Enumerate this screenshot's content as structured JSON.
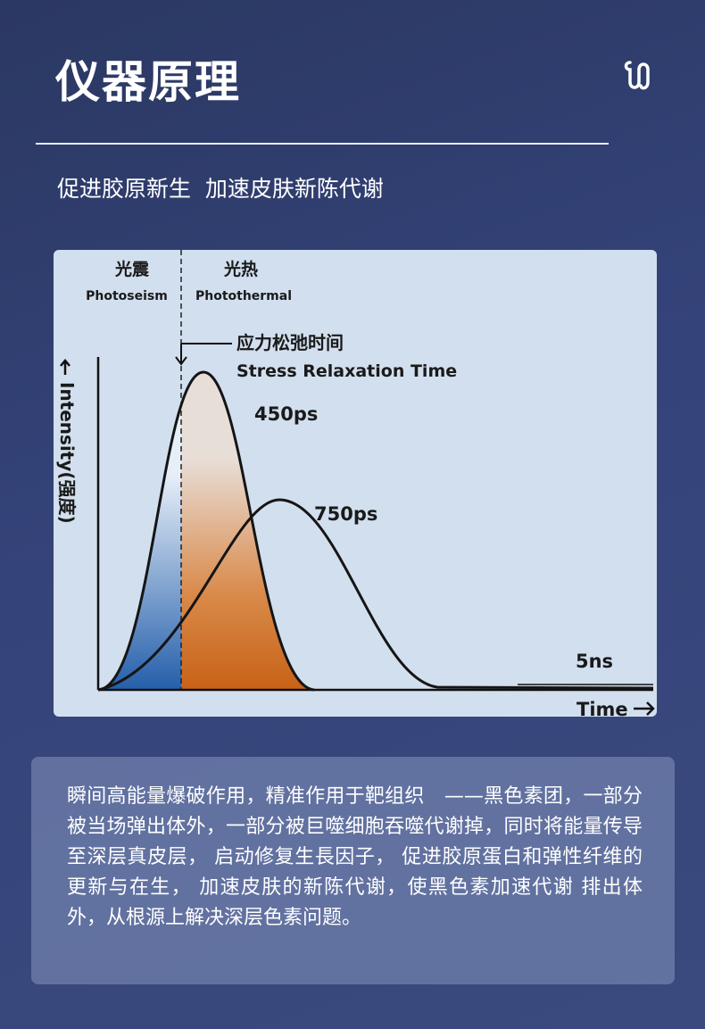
{
  "header": {
    "title": "仪器原理",
    "subtitle": "促进胶原新生  加速皮肤新陈代谢"
  },
  "diagram": {
    "left_region": {
      "zh": "光震",
      "en": "Photoseism"
    },
    "right_region": {
      "zh": "光热",
      "en": "Photothermal"
    },
    "annotation": {
      "zh": "应力松弛时间",
      "en": "Stress Relaxation Time"
    },
    "y_axis_label": "Intensity(强度)",
    "x_axis_label": "Time",
    "curve_labels": [
      "450ps",
      "750ps",
      "5ns"
    ]
  },
  "description": "瞬间高能量爆破作用，精准作用于靶组织　——黑色素团，一部分被当场弹出体外，一部分被巨噬细胞吞噬代谢掉，同时将能量传导至深层真皮层， 启动修复生長因子， 促进胶原蛋白和弹性纤维的更新与在生， 加速皮肤的新陈代谢，使黑色素加速代谢 排出体外，从根源上解决深层色素问题。"
}
